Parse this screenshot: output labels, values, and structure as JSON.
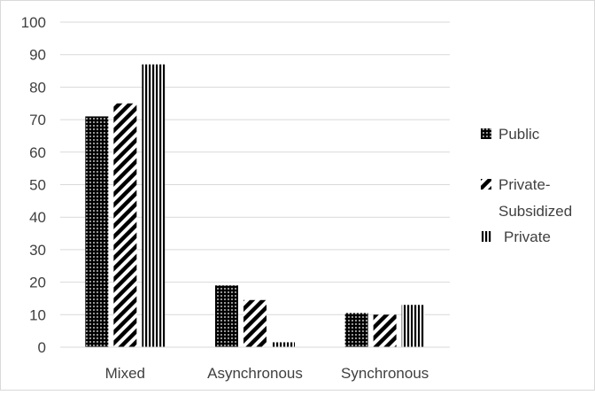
{
  "chart_data": {
    "type": "bar",
    "categories": [
      "Mixed",
      "Asynchronous",
      "Synchronous"
    ],
    "series": [
      {
        "name": "Public",
        "pattern": "dots",
        "values": [
          71,
          19,
          10.5
        ]
      },
      {
        "name": "Private-Subsidized",
        "pattern": "diagonal",
        "values": [
          75,
          14.5,
          10
        ]
      },
      {
        "name": "Private",
        "pattern": "vertical",
        "values": [
          87,
          1.5,
          13
        ]
      }
    ],
    "y_ticks": [
      "0",
      "10",
      "20",
      "30",
      "40",
      "50",
      "60",
      "70",
      "80",
      "90",
      "100"
    ],
    "ylim": [
      0,
      100
    ],
    "grid": true,
    "legend_position": "right",
    "colors": {
      "bar": "#000000",
      "grid": "#d9d9d9",
      "border": "#d9d9d9",
      "text": "#404040"
    }
  },
  "legend": {
    "public": "Public",
    "subsidized_line1": "Private-",
    "subsidized_line2": "Subsidized",
    "private": "Private"
  }
}
